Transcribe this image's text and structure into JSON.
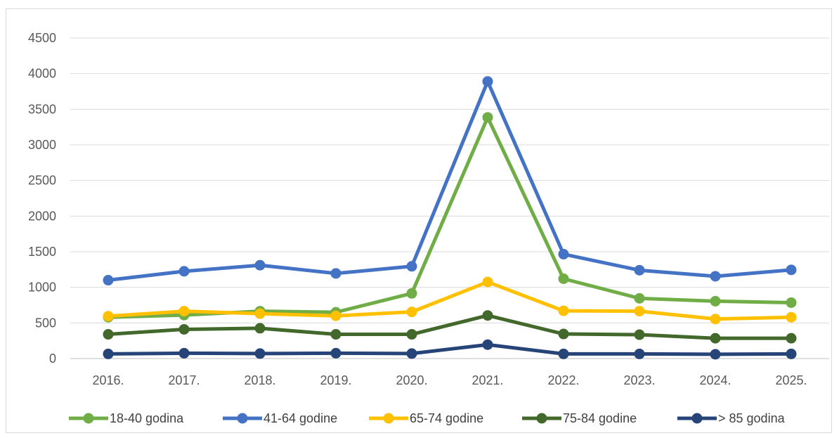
{
  "chart_data": {
    "type": "line",
    "categories": [
      "2016.",
      "2017.",
      "2018.",
      "2019.",
      "2020.",
      "2021.",
      "2022.",
      "2023.",
      "2024.",
      "2025."
    ],
    "ylim": [
      0,
      4500
    ],
    "yticks": [
      0,
      500,
      1000,
      1500,
      2000,
      2500,
      3000,
      3500,
      4000,
      4500
    ],
    "ytick_labels": [
      "0",
      "500",
      "1000",
      "1500",
      "2000",
      "2500",
      "3000",
      "3500",
      "4000",
      "4500"
    ],
    "grid": true,
    "legend_position": "bottom",
    "series": [
      {
        "name": "18-40 godina",
        "color": "#70ad47",
        "values": [
          580,
          610,
          665,
          650,
          915,
          3385,
          1120,
          845,
          805,
          785
        ]
      },
      {
        "name": "41-64 godine",
        "color": "#4472c4",
        "values": [
          1100,
          1225,
          1310,
          1195,
          1295,
          3890,
          1465,
          1240,
          1155,
          1245
        ]
      },
      {
        "name": "65-74 godine",
        "color": "#ffc000",
        "values": [
          595,
          665,
          630,
          600,
          655,
          1075,
          670,
          665,
          555,
          580
        ]
      },
      {
        "name": "75-84 godine",
        "color": "#43682b",
        "values": [
          340,
          410,
          425,
          340,
          340,
          605,
          345,
          335,
          285,
          285
        ]
      },
      {
        "name": "> 85 godina",
        "color": "#264478",
        "values": [
          65,
          75,
          70,
          75,
          70,
          195,
          65,
          65,
          60,
          65
        ]
      }
    ]
  }
}
